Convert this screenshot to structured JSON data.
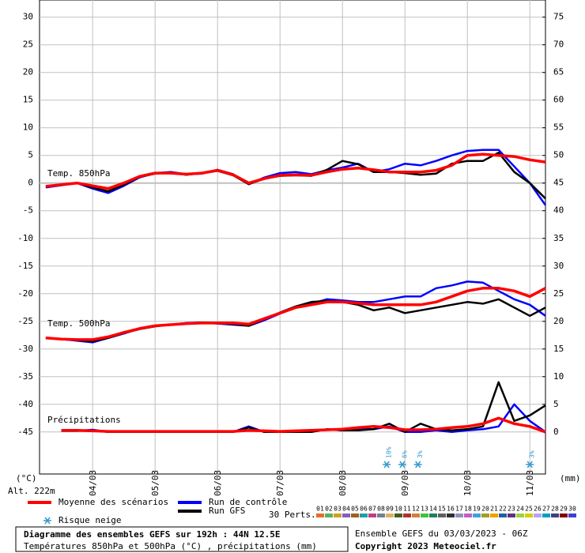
{
  "chart_data": {
    "type": "line",
    "x": [
      0,
      6,
      12,
      18,
      24,
      30,
      36,
      42,
      48,
      54,
      60,
      66,
      72,
      78,
      84,
      90,
      96,
      102,
      108,
      114,
      120,
      126,
      132,
      138,
      144,
      150,
      156,
      162,
      168,
      174,
      180,
      186,
      192
    ],
    "xlim": [
      -2.4,
      192
    ],
    "xticks": [
      {
        "value": 18,
        "label": "04/03"
      },
      {
        "value": 42,
        "label": "05/03"
      },
      {
        "value": 66,
        "label": "06/03"
      },
      {
        "value": 90,
        "label": "07/03"
      },
      {
        "value": 114,
        "label": "08/03"
      },
      {
        "value": 138,
        "label": "09/03"
      },
      {
        "value": 162,
        "label": "10/03"
      },
      {
        "value": 186,
        "label": "11/03"
      }
    ],
    "ylim": [
      -52.6,
      33.1
    ],
    "yticks": [
      30,
      25,
      20,
      15,
      10,
      5,
      0,
      -5,
      -10,
      -15,
      -20,
      -25,
      -30,
      -35,
      -40,
      -45
    ],
    "y2lim": [
      -7.6,
      78.1
    ],
    "y2ticks": [
      75,
      70,
      65,
      60,
      55,
      50,
      45,
      40,
      35,
      30,
      25,
      20,
      15,
      10,
      5,
      0
    ],
    "ylabel": "(°C)",
    "y2label": "(mm)",
    "altitude": "Alt. 222m",
    "grid": true,
    "panel_labels": [
      "Temp. 850hPa",
      "Temp. 500hPa",
      "Précipitations"
    ],
    "series": [
      {
        "name": "Run de contrôle",
        "color": "#0000ff",
        "t850": [
          -0.8,
          -0.4,
          0,
          -1,
          -1.8,
          -0.5,
          1,
          1.8,
          2,
          1.6,
          1.7,
          2.4,
          1.6,
          -0.2,
          1,
          1.8,
          2,
          1.6,
          2.3,
          2.8,
          3.5,
          2,
          2.5,
          3.5,
          3.2,
          4,
          5,
          5.8,
          6,
          6,
          3,
          0,
          -4
        ],
        "t500": [
          -28,
          -28.2,
          -28.5,
          -28.8,
          -28,
          -27.2,
          -26.3,
          -25.8,
          -25.6,
          -25.3,
          -25.2,
          -25.4,
          -25.6,
          -25.8,
          -24.8,
          -23.6,
          -22.5,
          -21.8,
          -21,
          -21.2,
          -21.5,
          -21.5,
          -21,
          -20.5,
          -20.5,
          -19,
          -18.5,
          -17.8,
          -18,
          -19.5,
          -21,
          -22,
          -24
        ],
        "precip": [
          null,
          0.2,
          0.2,
          0.4,
          0,
          0,
          0,
          0,
          0,
          0,
          0,
          0,
          0,
          1,
          0,
          0,
          0,
          0,
          0.5,
          0.3,
          0.5,
          0.5,
          1,
          0,
          0,
          0.3,
          0,
          0.3,
          0.5,
          1,
          5,
          2,
          0
        ]
      },
      {
        "name": "Run GFS",
        "color": "#000000",
        "t850": [
          -0.7,
          -0.3,
          0,
          -0.8,
          -1.5,
          -0.3,
          1.1,
          1.7,
          1.9,
          1.5,
          1.8,
          2.2,
          1.4,
          -0.2,
          0.8,
          1.3,
          1.4,
          1.3,
          2.4,
          4,
          3.4,
          2,
          2,
          1.8,
          1.5,
          1.7,
          3.5,
          4,
          4,
          5.5,
          2,
          0,
          -2.8
        ],
        "t500": [
          -28,
          -28.2,
          -28.4,
          -28.6,
          -28,
          -27.1,
          -26.4,
          -25.9,
          -25.6,
          -25.4,
          -25.2,
          -25.3,
          -25.5,
          -25.8,
          -24.6,
          -23.4,
          -22.3,
          -21.5,
          -21.3,
          -21.5,
          -22,
          -23,
          -22.5,
          -23.5,
          -23,
          -22.5,
          -22,
          -21.5,
          -21.8,
          -21,
          -22.5,
          -24,
          -22.5
        ],
        "precip": [
          null,
          0.2,
          0.2,
          0.3,
          0,
          0,
          0,
          0,
          0,
          0,
          0,
          0,
          0,
          0.8,
          0,
          0,
          0,
          0,
          0.5,
          0.3,
          0.3,
          0.5,
          1.5,
          0,
          1.5,
          0.5,
          0.3,
          0.5,
          1,
          9,
          2,
          3,
          4.8
        ]
      },
      {
        "name": "Moyenne des scénarios",
        "color": "#ff0000",
        "t850": [
          -0.6,
          -0.3,
          0,
          -0.5,
          -1,
          0,
          1.2,
          1.8,
          1.8,
          1.6,
          1.8,
          2.3,
          1.5,
          0,
          0.8,
          1.4,
          1.5,
          1.4,
          2,
          2.5,
          2.7,
          2.4,
          2,
          2,
          2,
          2.3,
          3.2,
          5,
          5.2,
          5,
          4.8,
          4.2,
          3.8
        ],
        "t500": [
          -28,
          -28.2,
          -28.3,
          -28.3,
          -27.8,
          -27,
          -26.3,
          -25.8,
          -25.6,
          -25.4,
          -25.3,
          -25.3,
          -25.3,
          -25.5,
          -24.5,
          -23.5,
          -22.5,
          -22,
          -21.5,
          -21.5,
          -21.7,
          -22,
          -22,
          -22,
          -22,
          -21.5,
          -20.5,
          -19.5,
          -19,
          -19,
          -19.5,
          -20.5,
          -19
        ],
        "precip": [
          null,
          0.3,
          0.3,
          0.2,
          0.1,
          0.1,
          0.1,
          0.1,
          0.1,
          0.1,
          0.1,
          0.1,
          0.1,
          0.3,
          0.2,
          0.1,
          0.2,
          0.3,
          0.4,
          0.5,
          0.8,
          1,
          0.8,
          0.4,
          0.4,
          0.5,
          0.8,
          1,
          1.5,
          2.5,
          1.5,
          1,
          0
        ]
      }
    ],
    "snow_label": "Risque neige",
    "snow_risk": [
      {
        "x": 131,
        "label": "10%"
      },
      {
        "x": 137,
        "label": "6%"
      },
      {
        "x": 143,
        "label": "3%"
      },
      {
        "x": 186,
        "label": "3%"
      }
    ],
    "perturbations": {
      "label": "30 Perts.",
      "names": [
        "01",
        "02",
        "03",
        "04",
        "05",
        "06",
        "07",
        "08",
        "09",
        "10",
        "11",
        "12",
        "13",
        "14",
        "15",
        "16",
        "17",
        "18",
        "19",
        "20",
        "21",
        "22",
        "23",
        "24",
        "25",
        "26",
        "27",
        "28",
        "29",
        "30"
      ],
      "colors": [
        "#e07030",
        "#60b060",
        "#d0a020",
        "#8060c0",
        "#a06020",
        "#20a0a0",
        "#c04080",
        "#708090",
        "#e0b060",
        "#406020",
        "#b03030",
        "#d08040",
        "#40c040",
        "#208060",
        "#606060",
        "#303030",
        "#9090c0",
        "#c060c0",
        "#40a0e0",
        "#a0a020",
        "#f0a000",
        "#2060a0",
        "#603080",
        "#a0d040",
        "#d0d000",
        "#c0a0f0",
        "#00a0c0",
        "#404080",
        "#800000",
        "#4040d0"
      ]
    },
    "footer": {
      "title": "Diagramme des ensembles GEFS sur 192h : 44N 12.5E",
      "subtitle": "Températures 850hPa et 500hPa (°C) , précipitations (mm)",
      "run": "Ensemble GEFS du 03/03/2023 - 06Z",
      "copyright": "Copyright 2023 Meteociel.fr"
    }
  }
}
